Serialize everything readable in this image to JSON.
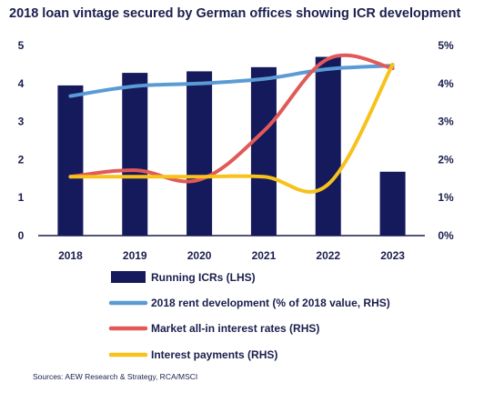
{
  "chart_data": {
    "type": "bar",
    "title": "2018 loan vintage secured by German offices showing ICR development",
    "categories": [
      "2018",
      "2019",
      "2020",
      "2021",
      "2022",
      "2023"
    ],
    "left_axis": {
      "ylim": [
        0,
        5
      ],
      "ticks": [
        "0",
        "1",
        "2",
        "3",
        "4",
        "5"
      ]
    },
    "right_axis": {
      "ylim": [
        0,
        5
      ],
      "ticks": [
        "0%",
        "1%",
        "2%",
        "3%",
        "4%",
        "5%"
      ]
    },
    "series": [
      {
        "name": "Running ICRs (LHS)",
        "type": "bar",
        "axis": "left",
        "color": "#141a5c",
        "values": [
          3.95,
          4.28,
          4.32,
          4.43,
          4.7,
          1.68
        ]
      },
      {
        "name": "2018 rent development (% of 2018 value, RHS)",
        "type": "line",
        "axis": "right",
        "color": "#5b9bd5",
        "values": [
          3.67,
          3.93,
          4.0,
          4.12,
          4.38,
          4.47
        ]
      },
      {
        "name": "Market all-in interest rates (RHS)",
        "type": "line",
        "axis": "right",
        "color": "#e05a58",
        "values": [
          1.55,
          1.72,
          1.47,
          2.75,
          4.65,
          4.4
        ]
      },
      {
        "name": "Interest payments (RHS)",
        "type": "line",
        "axis": "right",
        "color": "#f7c21b",
        "values": [
          1.55,
          1.55,
          1.55,
          1.55,
          1.35,
          4.5
        ]
      }
    ],
    "legend_position": "bottom",
    "grid": false
  },
  "source": "Sources: AEW Research & Strategy, RCA/MSCI"
}
